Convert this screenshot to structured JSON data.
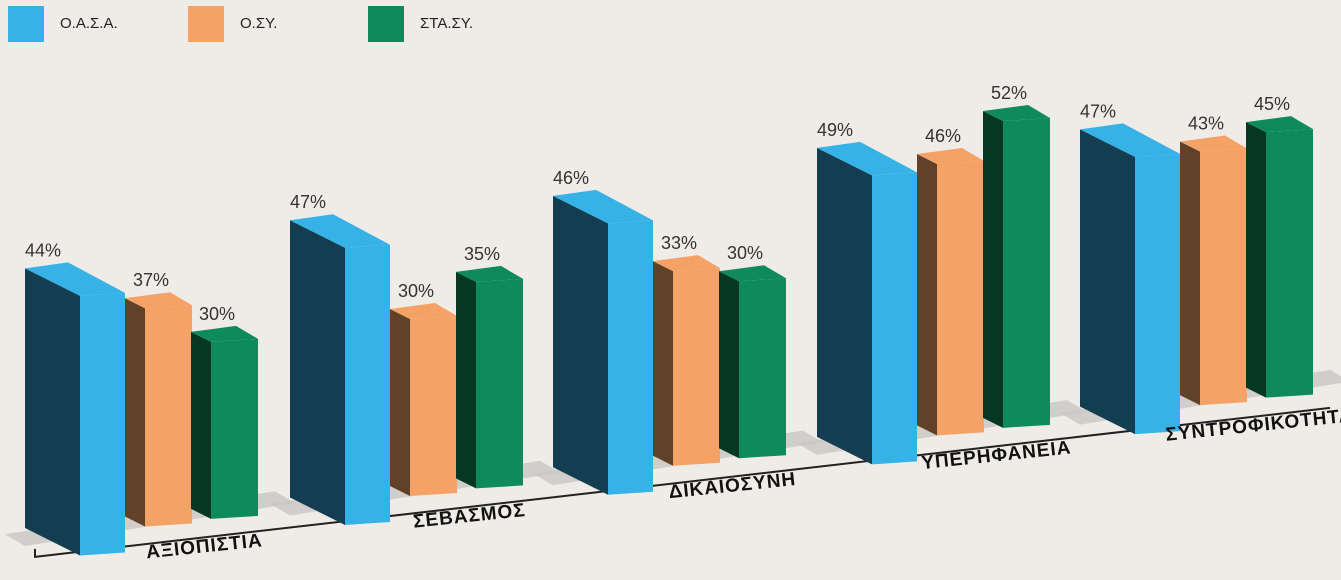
{
  "chart_data": {
    "type": "bar3d",
    "categories": [
      "ΑΞΙΟΠΙΣΤΙΑ",
      "ΣΕΒΑΣΜΟΣ",
      "ΔΙΚΑΙΟΣΥΝΗ",
      "ΥΠΕΡΗΦΑΝΕΙΑ",
      "ΣΥΝΤΡΟΦΙΚΟΤΗΤΑ"
    ],
    "series": [
      {
        "name": "Ο.Α.Σ.Α.",
        "color": "#36b2e6",
        "values": [
          44,
          47,
          46,
          49,
          47
        ],
        "value_labels": [
          "44%",
          "47%",
          "46%",
          "49%",
          "47%"
        ]
      },
      {
        "name": "Ο.ΣΥ.",
        "color": "#f5a267",
        "values": [
          37,
          30,
          33,
          46,
          43
        ],
        "value_labels": [
          "37%",
          "30%",
          "33%",
          "46%",
          "43%"
        ]
      },
      {
        "name": "ΣΤΑ.ΣΥ.",
        "color": "#0f8a5c",
        "values": [
          30,
          35,
          30,
          52,
          45
        ],
        "value_labels": [
          "30%",
          "35%",
          "30%",
          "52%",
          "45%"
        ]
      }
    ],
    "legend": "top-left"
  }
}
